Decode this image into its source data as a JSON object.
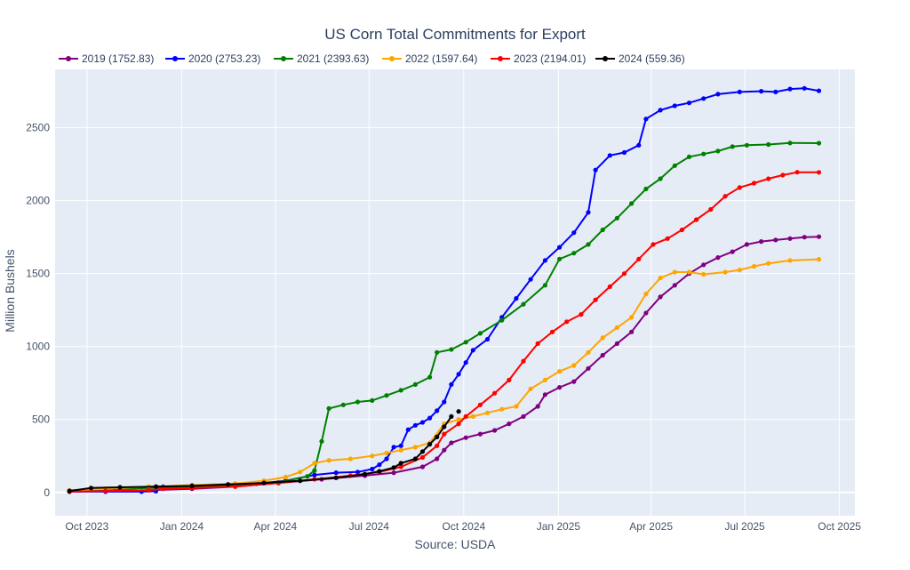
{
  "chart_data": {
    "type": "line",
    "title": "US Corn Total Commitments for Export",
    "xlabel": "Source: USDA",
    "ylabel": "Million Bushels",
    "x_domain": [
      "2023-08-31",
      "2025-10-16"
    ],
    "ylim": [
      -160,
      2900
    ],
    "x_ticks": [
      {
        "date": "2023-10-01",
        "label": "Oct 2023"
      },
      {
        "date": "2024-01-01",
        "label": "Jan 2024"
      },
      {
        "date": "2024-04-01",
        "label": "Apr 2024"
      },
      {
        "date": "2024-07-01",
        "label": "Jul 2024"
      },
      {
        "date": "2024-10-01",
        "label": "Oct 2024"
      },
      {
        "date": "2025-01-01",
        "label": "Jan 2025"
      },
      {
        "date": "2025-04-01",
        "label": "Apr 2025"
      },
      {
        "date": "2025-07-01",
        "label": "Jul 2025"
      },
      {
        "date": "2025-10-01",
        "label": "Oct 2025"
      }
    ],
    "y_ticks": [
      0,
      500,
      1000,
      1500,
      2000,
      2500
    ],
    "grid": true,
    "legend_position": "top-left",
    "background": "#e5ecf6",
    "series": [
      {
        "name": "2019 (1752.83)",
        "color": "#800080",
        "points": [
          [
            "2023-09-14",
            5
          ],
          [
            "2023-10-19",
            10
          ],
          [
            "2023-11-30",
            15
          ],
          [
            "2024-01-11",
            25
          ],
          [
            "2024-02-22",
            40
          ],
          [
            "2024-04-04",
            65
          ],
          [
            "2024-05-16",
            90
          ],
          [
            "2024-06-27",
            115
          ],
          [
            "2024-07-25",
            135
          ],
          [
            "2024-08-22",
            175
          ],
          [
            "2024-09-05",
            230
          ],
          [
            "2024-09-12",
            290
          ],
          [
            "2024-09-19",
            340
          ],
          [
            "2024-10-03",
            375
          ],
          [
            "2024-10-17",
            400
          ],
          [
            "2024-10-31",
            425
          ],
          [
            "2024-11-14",
            470
          ],
          [
            "2024-11-28",
            520
          ],
          [
            "2024-12-12",
            590
          ],
          [
            "2024-12-19",
            670
          ],
          [
            "2025-01-02",
            720
          ],
          [
            "2025-01-16",
            760
          ],
          [
            "2025-01-30",
            850
          ],
          [
            "2025-02-13",
            940
          ],
          [
            "2025-02-27",
            1020
          ],
          [
            "2025-03-13",
            1100
          ],
          [
            "2025-03-27",
            1230
          ],
          [
            "2025-04-10",
            1340
          ],
          [
            "2025-04-24",
            1420
          ],
          [
            "2025-05-08",
            1500
          ],
          [
            "2025-05-22",
            1560
          ],
          [
            "2025-06-05",
            1610
          ],
          [
            "2025-06-19",
            1650
          ],
          [
            "2025-07-03",
            1700
          ],
          [
            "2025-07-17",
            1720
          ],
          [
            "2025-07-31",
            1730
          ],
          [
            "2025-08-14",
            1740
          ],
          [
            "2025-08-28",
            1750
          ],
          [
            "2025-09-11",
            1753
          ]
        ]
      },
      {
        "name": "2020 (2753.23)",
        "color": "#0000ff",
        "points": [
          [
            "2023-09-14",
            5
          ],
          [
            "2023-10-19",
            5
          ],
          [
            "2023-11-23",
            5
          ],
          [
            "2023-12-07",
            8
          ],
          [
            "2023-12-14",
            40
          ],
          [
            "2024-02-01",
            45
          ],
          [
            "2024-03-14",
            60
          ],
          [
            "2024-04-11",
            80
          ],
          [
            "2024-05-09",
            120
          ],
          [
            "2024-05-30",
            135
          ],
          [
            "2024-06-20",
            140
          ],
          [
            "2024-07-04",
            160
          ],
          [
            "2024-07-11",
            190
          ],
          [
            "2024-07-18",
            230
          ],
          [
            "2024-07-25",
            310
          ],
          [
            "2024-08-01",
            320
          ],
          [
            "2024-08-08",
            430
          ],
          [
            "2024-08-15",
            460
          ],
          [
            "2024-08-22",
            480
          ],
          [
            "2024-08-29",
            510
          ],
          [
            "2024-09-05",
            560
          ],
          [
            "2024-09-12",
            620
          ],
          [
            "2024-09-19",
            740
          ],
          [
            "2024-09-26",
            810
          ],
          [
            "2024-10-03",
            890
          ],
          [
            "2024-10-10",
            975
          ],
          [
            "2024-10-24",
            1050
          ],
          [
            "2024-11-07",
            1200
          ],
          [
            "2024-11-21",
            1330
          ],
          [
            "2024-12-05",
            1460
          ],
          [
            "2024-12-19",
            1590
          ],
          [
            "2025-01-02",
            1680
          ],
          [
            "2025-01-16",
            1780
          ],
          [
            "2025-01-30",
            1920
          ],
          [
            "2025-02-06",
            2210
          ],
          [
            "2025-02-20",
            2310
          ],
          [
            "2025-03-06",
            2330
          ],
          [
            "2025-03-20",
            2380
          ],
          [
            "2025-03-27",
            2560
          ],
          [
            "2025-04-10",
            2620
          ],
          [
            "2025-04-24",
            2650
          ],
          [
            "2025-05-08",
            2670
          ],
          [
            "2025-05-22",
            2700
          ],
          [
            "2025-06-05",
            2730
          ],
          [
            "2025-06-26",
            2745
          ],
          [
            "2025-07-17",
            2750
          ],
          [
            "2025-07-31",
            2745
          ],
          [
            "2025-08-14",
            2765
          ],
          [
            "2025-08-28",
            2770
          ],
          [
            "2025-09-11",
            2753
          ]
        ]
      },
      {
        "name": "2021 (2393.63)",
        "color": "#008000",
        "points": [
          [
            "2023-09-14",
            10
          ],
          [
            "2023-10-19",
            20
          ],
          [
            "2023-11-30",
            30
          ],
          [
            "2024-01-11",
            35
          ],
          [
            "2024-02-22",
            45
          ],
          [
            "2024-04-04",
            70
          ],
          [
            "2024-05-02",
            110
          ],
          [
            "2024-05-09",
            150
          ],
          [
            "2024-05-16",
            350
          ],
          [
            "2024-05-23",
            575
          ],
          [
            "2024-06-06",
            600
          ],
          [
            "2024-06-20",
            620
          ],
          [
            "2024-07-04",
            630
          ],
          [
            "2024-07-18",
            665
          ],
          [
            "2024-08-01",
            700
          ],
          [
            "2024-08-15",
            740
          ],
          [
            "2024-08-29",
            790
          ],
          [
            "2024-09-05",
            960
          ],
          [
            "2024-09-19",
            980
          ],
          [
            "2024-10-03",
            1030
          ],
          [
            "2024-10-17",
            1090
          ],
          [
            "2024-11-07",
            1180
          ],
          [
            "2024-11-28",
            1290
          ],
          [
            "2024-12-19",
            1420
          ],
          [
            "2025-01-02",
            1600
          ],
          [
            "2025-01-16",
            1640
          ],
          [
            "2025-01-30",
            1700
          ],
          [
            "2025-02-13",
            1800
          ],
          [
            "2025-02-27",
            1880
          ],
          [
            "2025-03-13",
            1980
          ],
          [
            "2025-03-27",
            2080
          ],
          [
            "2025-04-10",
            2150
          ],
          [
            "2025-04-24",
            2240
          ],
          [
            "2025-05-08",
            2300
          ],
          [
            "2025-05-22",
            2320
          ],
          [
            "2025-06-05",
            2340
          ],
          [
            "2025-06-19",
            2370
          ],
          [
            "2025-07-03",
            2380
          ],
          [
            "2025-07-24",
            2385
          ],
          [
            "2025-08-14",
            2395
          ],
          [
            "2025-09-11",
            2394
          ]
        ]
      },
      {
        "name": "2022 (1597.64)",
        "color": "#ffa500",
        "points": [
          [
            "2023-09-14",
            15
          ],
          [
            "2023-10-19",
            25
          ],
          [
            "2023-11-30",
            40
          ],
          [
            "2024-01-11",
            50
          ],
          [
            "2024-02-22",
            60
          ],
          [
            "2024-03-21",
            80
          ],
          [
            "2024-04-11",
            105
          ],
          [
            "2024-04-25",
            140
          ],
          [
            "2024-05-09",
            200
          ],
          [
            "2024-05-23",
            220
          ],
          [
            "2024-06-13",
            230
          ],
          [
            "2024-07-04",
            250
          ],
          [
            "2024-07-18",
            270
          ],
          [
            "2024-08-01",
            290
          ],
          [
            "2024-08-15",
            310
          ],
          [
            "2024-08-29",
            340
          ],
          [
            "2024-09-12",
            470
          ],
          [
            "2024-09-26",
            500
          ],
          [
            "2024-10-10",
            520
          ],
          [
            "2024-10-24",
            545
          ],
          [
            "2024-11-07",
            570
          ],
          [
            "2024-11-21",
            590
          ],
          [
            "2024-12-05",
            710
          ],
          [
            "2024-12-19",
            770
          ],
          [
            "2025-01-02",
            830
          ],
          [
            "2025-01-16",
            870
          ],
          [
            "2025-01-30",
            960
          ],
          [
            "2025-02-13",
            1060
          ],
          [
            "2025-02-27",
            1130
          ],
          [
            "2025-03-13",
            1200
          ],
          [
            "2025-03-27",
            1360
          ],
          [
            "2025-04-10",
            1470
          ],
          [
            "2025-04-24",
            1510
          ],
          [
            "2025-05-08",
            1510
          ],
          [
            "2025-05-22",
            1495
          ],
          [
            "2025-06-12",
            1510
          ],
          [
            "2025-06-26",
            1525
          ],
          [
            "2025-07-10",
            1550
          ],
          [
            "2025-07-24",
            1570
          ],
          [
            "2025-08-14",
            1590
          ],
          [
            "2025-09-11",
            1598
          ]
        ]
      },
      {
        "name": "2023 (2194.01)",
        "color": "#ff0000",
        "points": [
          [
            "2023-09-14",
            5
          ],
          [
            "2023-10-19",
            10
          ],
          [
            "2023-11-30",
            15
          ],
          [
            "2023-12-14",
            25
          ],
          [
            "2024-01-11",
            30
          ],
          [
            "2024-02-22",
            40
          ],
          [
            "2024-04-04",
            65
          ],
          [
            "2024-05-09",
            90
          ],
          [
            "2024-06-13",
            115
          ],
          [
            "2024-07-11",
            140
          ],
          [
            "2024-08-01",
            175
          ],
          [
            "2024-08-22",
            240
          ],
          [
            "2024-09-05",
            320
          ],
          [
            "2024-09-12",
            400
          ],
          [
            "2024-09-26",
            470
          ],
          [
            "2024-10-03",
            520
          ],
          [
            "2024-10-17",
            600
          ],
          [
            "2024-10-31",
            680
          ],
          [
            "2024-11-14",
            770
          ],
          [
            "2024-11-28",
            900
          ],
          [
            "2024-12-12",
            1020
          ],
          [
            "2024-12-26",
            1100
          ],
          [
            "2025-01-09",
            1170
          ],
          [
            "2025-01-23",
            1220
          ],
          [
            "2025-02-06",
            1320
          ],
          [
            "2025-02-20",
            1410
          ],
          [
            "2025-03-06",
            1500
          ],
          [
            "2025-03-20",
            1600
          ],
          [
            "2025-04-03",
            1700
          ],
          [
            "2025-04-17",
            1740
          ],
          [
            "2025-05-01",
            1800
          ],
          [
            "2025-05-15",
            1870
          ],
          [
            "2025-05-29",
            1940
          ],
          [
            "2025-06-12",
            2030
          ],
          [
            "2025-06-26",
            2090
          ],
          [
            "2025-07-10",
            2120
          ],
          [
            "2025-07-24",
            2150
          ],
          [
            "2025-08-07",
            2175
          ],
          [
            "2025-08-21",
            2195
          ],
          [
            "2025-09-11",
            2194
          ]
        ]
      },
      {
        "name": "2024 (559.36)",
        "color": "#000000",
        "points": [
          [
            "2023-09-14",
            10
          ],
          [
            "2023-10-05",
            30
          ],
          [
            "2023-11-02",
            35
          ],
          [
            "2023-12-07",
            40
          ],
          [
            "2024-01-11",
            45
          ],
          [
            "2024-02-15",
            55
          ],
          [
            "2024-03-21",
            65
          ],
          [
            "2024-04-25",
            80
          ],
          [
            "2024-05-30",
            100
          ],
          [
            "2024-06-27",
            125
          ],
          [
            "2024-07-11",
            145
          ],
          [
            "2024-07-25",
            170
          ],
          [
            "2024-08-01",
            200
          ],
          [
            "2024-08-15",
            230
          ],
          [
            "2024-08-22",
            280
          ],
          [
            "2024-08-29",
            330
          ],
          [
            "2024-09-05",
            380
          ],
          [
            "2024-09-12",
            450
          ],
          [
            "2024-09-19",
            520
          ],
          null,
          [
            "2024-09-26",
            555
          ]
        ]
      }
    ]
  }
}
